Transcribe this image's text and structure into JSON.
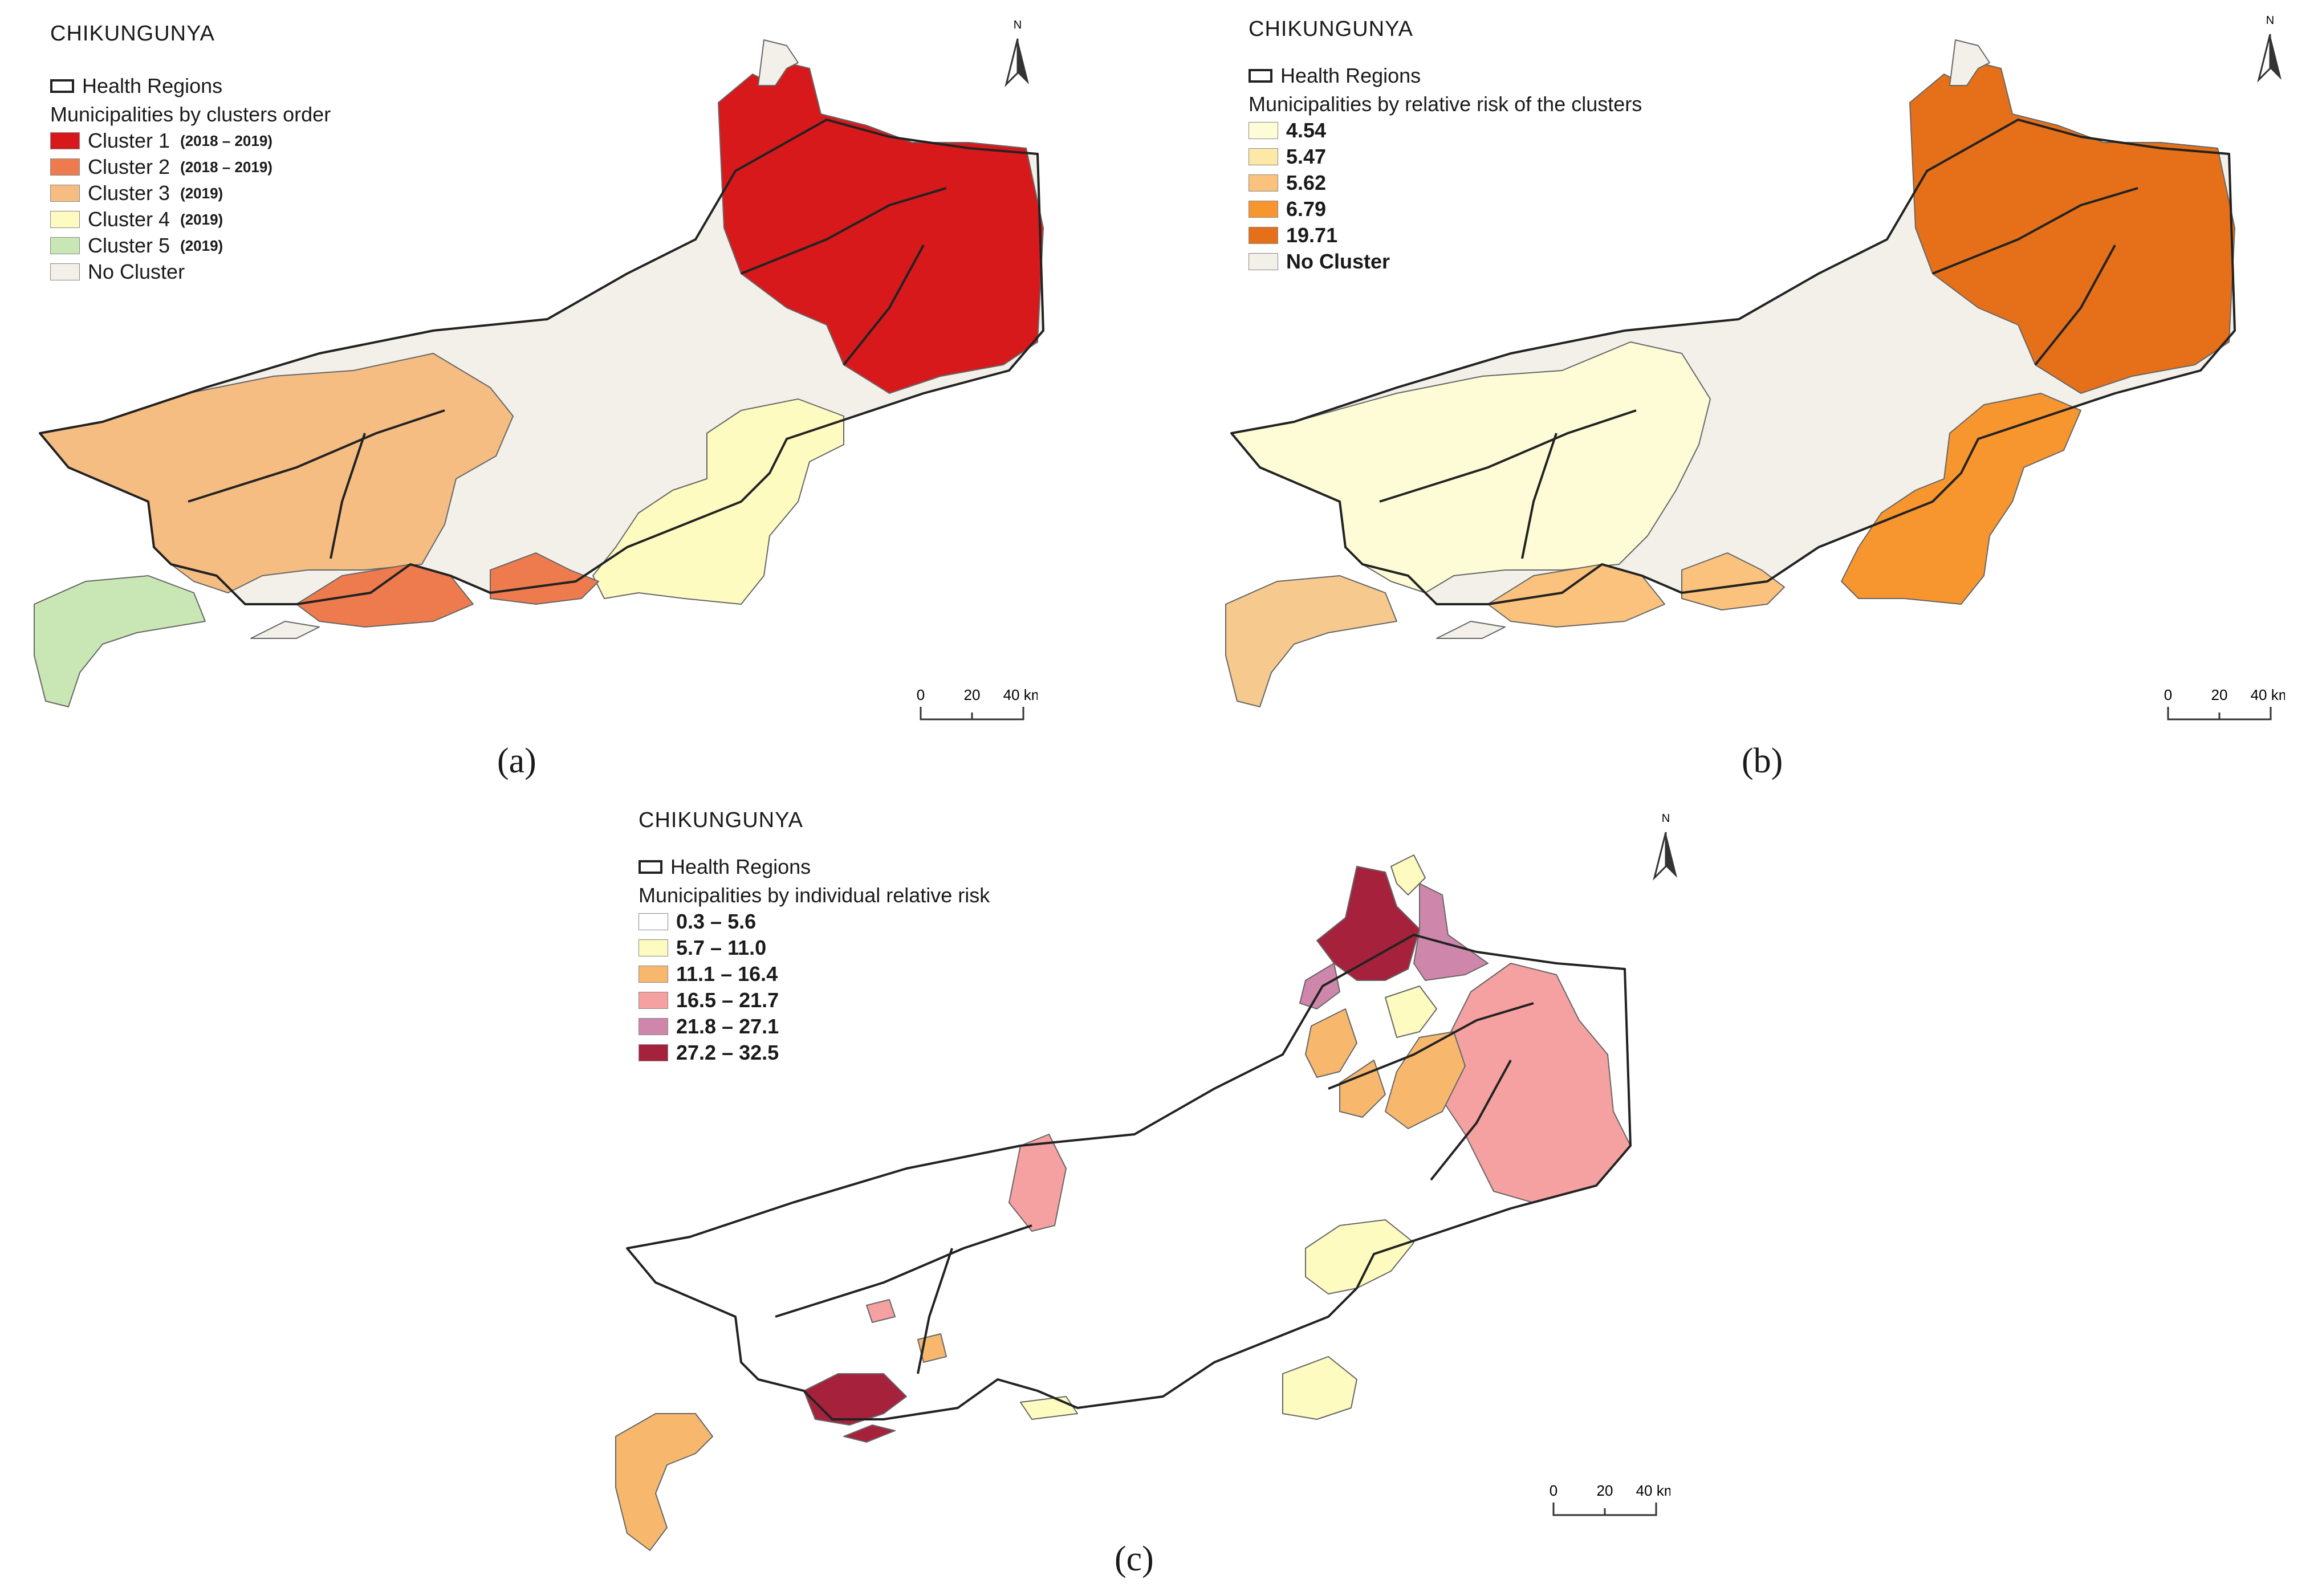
{
  "panels": {
    "a": {
      "title": "CHIKUNGUNYA",
      "region_label": "Health Regions",
      "legend_heading": "Municipalities by clusters order",
      "legend": [
        {
          "label": "Cluster 1",
          "years": "(2018 – 2019)",
          "color": "#d7191c"
        },
        {
          "label": "Cluster 2",
          "years": "(2018 – 2019)",
          "color": "#ee7b4e"
        },
        {
          "label": "Cluster 3",
          "years": "(2019)",
          "color": "#f6bd82"
        },
        {
          "label": "Cluster 4",
          "years": "(2019)",
          "color": "#fdfbbf"
        },
        {
          "label": "Cluster 5",
          "years": "(2019)",
          "color": "#c9e7b5"
        },
        {
          "label": "No Cluster",
          "years": "",
          "color": "#f2f0e9"
        }
      ],
      "north_label": "N",
      "scale": {
        "t0": "0",
        "t1": "20",
        "t2": "40 km"
      },
      "caption": "(a)"
    },
    "b": {
      "title": "CHIKUNGUNYA",
      "region_label": "Health Regions",
      "legend_heading": "Municipalities by  relative risk of the clusters",
      "legend": [
        {
          "label": "4.54",
          "color": "#fefcd6"
        },
        {
          "label": "5.47",
          "color": "#fde8a8"
        },
        {
          "label": "5.62",
          "color": "#fbc27d"
        },
        {
          "label": "6.79",
          "color": "#f7952f"
        },
        {
          "label": "19.71",
          "color": "#e57019"
        },
        {
          "label": "No Cluster",
          "color": "#f2f0e9"
        }
      ],
      "north_label": "N",
      "scale": {
        "t0": "0",
        "t1": "20",
        "t2": "40 km"
      },
      "caption": "(b)"
    },
    "c": {
      "title": "CHIKUNGUNYA",
      "region_label": "Health Regions",
      "legend_heading": "Municipalities by  individual relative risk",
      "legend": [
        {
          "label": "0.3  –  5.6",
          "color": "#ffffff"
        },
        {
          "label": "5.7  –  11.0",
          "color": "#fdfbbf"
        },
        {
          "label": "11.1 – 16.4",
          "color": "#f7b86e"
        },
        {
          "label": "16.5 – 21.7",
          "color": "#f6a1a1"
        },
        {
          "label": "21.8  –  27.1",
          "color": "#cf86ab"
        },
        {
          "label": "27.2 – 32.5",
          "color": "#a6223c"
        }
      ],
      "north_label": "N",
      "scale": {
        "t0": "0",
        "t1": "20",
        "t2": "40 km"
      },
      "caption": "(c)"
    }
  }
}
